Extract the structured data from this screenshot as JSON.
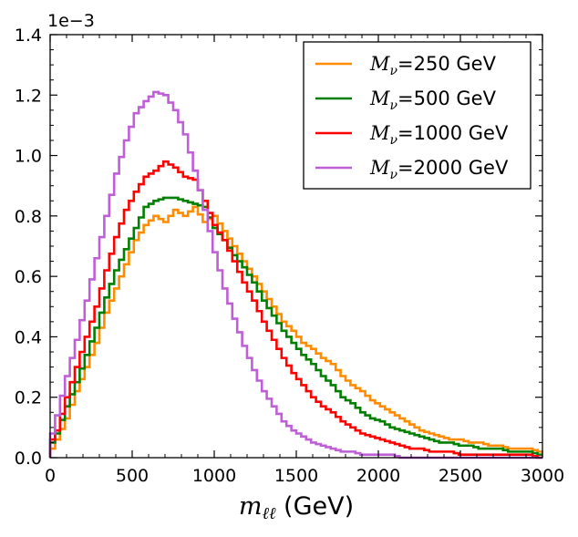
{
  "chart_data": {
    "type": "line",
    "drawstyle": "steps",
    "title": "",
    "xlabel_math": "m",
    "xlabel_sub": "ℓℓ",
    "xlabel_unit": " (GeV)",
    "ylabel": "",
    "y_offset_text": "1e−3",
    "xlim": [
      0,
      3000
    ],
    "ylim": [
      0,
      1.4
    ],
    "x_ticks": [
      0,
      500,
      1000,
      1500,
      2000,
      2500,
      3000
    ],
    "x_tick_labels": [
      "0",
      "500",
      "1000",
      "1500",
      "2000",
      "2500",
      "3000"
    ],
    "y_ticks": [
      0,
      0.2,
      0.4,
      0.6,
      0.8,
      1.0,
      1.2,
      1.4
    ],
    "y_tick_labels": [
      "0.0",
      "0.2",
      "0.4",
      "0.6",
      "0.8",
      "1.0",
      "1.2",
      "1.4"
    ],
    "legend_position": "top-right",
    "bin_edges": [
      0,
      3000
    ],
    "n_bins": 100,
    "series": [
      {
        "name": "M_ν=250 GeV",
        "legend_math": "M",
        "legend_sub": "ν",
        "legend_tail": "=250 GeV",
        "color": "#ff8c00",
        "anchors_x": [
          15,
          45,
          105,
          165,
          225,
          285,
          345,
          405,
          465,
          525,
          585,
          645,
          705,
          765,
          825,
          885,
          945,
          1005,
          1065,
          1125,
          1185,
          1245,
          1305,
          1365,
          1425,
          1485,
          1545,
          1605,
          1665,
          1725,
          1785,
          1845,
          1905,
          1965,
          2025,
          2085,
          2145,
          2205,
          2265,
          2325,
          2385,
          2445,
          2505,
          2565,
          2625,
          2685,
          2745,
          2805,
          2865,
          2925,
          2985
        ],
        "anchors_y": [
          0.03,
          0.06,
          0.13,
          0.22,
          0.3,
          0.38,
          0.48,
          0.56,
          0.64,
          0.72,
          0.77,
          0.8,
          0.78,
          0.82,
          0.8,
          0.83,
          0.78,
          0.8,
          0.75,
          0.7,
          0.65,
          0.6,
          0.55,
          0.5,
          0.45,
          0.42,
          0.38,
          0.36,
          0.33,
          0.31,
          0.27,
          0.24,
          0.22,
          0.19,
          0.17,
          0.15,
          0.13,
          0.11,
          0.09,
          0.08,
          0.07,
          0.06,
          0.06,
          0.05,
          0.05,
          0.04,
          0.04,
          0.03,
          0.03,
          0.03,
          0.02
        ]
      },
      {
        "name": "M_ν=500 GeV",
        "legend_math": "M",
        "legend_sub": "ν",
        "legend_tail": "=500 GeV",
        "color": "#007f00",
        "anchors_x": [
          15,
          45,
          105,
          165,
          225,
          285,
          345,
          405,
          465,
          525,
          585,
          645,
          705,
          765,
          825,
          885,
          945,
          1005,
          1065,
          1125,
          1185,
          1245,
          1305,
          1365,
          1425,
          1485,
          1545,
          1605,
          1665,
          1725,
          1785,
          1845,
          1905,
          1965,
          2025,
          2085,
          2145,
          2205,
          2265,
          2325,
          2385,
          2445,
          2505,
          2565,
          2625,
          2685,
          2745,
          2805,
          2865,
          2925,
          2985
        ],
        "anchors_y": [
          0.05,
          0.08,
          0.17,
          0.25,
          0.34,
          0.43,
          0.53,
          0.62,
          0.69,
          0.76,
          0.83,
          0.85,
          0.86,
          0.86,
          0.85,
          0.84,
          0.83,
          0.76,
          0.72,
          0.67,
          0.63,
          0.58,
          0.52,
          0.47,
          0.42,
          0.38,
          0.34,
          0.31,
          0.27,
          0.24,
          0.2,
          0.18,
          0.15,
          0.13,
          0.12,
          0.1,
          0.09,
          0.08,
          0.07,
          0.06,
          0.05,
          0.05,
          0.04,
          0.04,
          0.03,
          0.03,
          0.03,
          0.02,
          0.02,
          0.02,
          0.01
        ]
      },
      {
        "name": "M_ν=1000 GeV",
        "legend_math": "M",
        "legend_sub": "ν",
        "legend_tail": "=1000 GeV",
        "color": "#ff0000",
        "anchors_x": [
          15,
          45,
          105,
          165,
          225,
          285,
          345,
          405,
          465,
          525,
          585,
          645,
          705,
          765,
          825,
          885,
          945,
          1005,
          1065,
          1125,
          1185,
          1245,
          1305,
          1365,
          1425,
          1485,
          1545,
          1605,
          1665,
          1725,
          1785,
          1845,
          1905,
          1965,
          2025,
          2085,
          2145,
          2205,
          2265,
          2325,
          2385,
          2445,
          2505,
          2565,
          2625,
          2685,
          2745,
          2805,
          2865,
          2925,
          2985
        ],
        "anchors_y": [
          0.06,
          0.09,
          0.2,
          0.3,
          0.4,
          0.5,
          0.62,
          0.73,
          0.82,
          0.88,
          0.93,
          0.95,
          0.98,
          0.96,
          0.93,
          0.92,
          0.85,
          0.77,
          0.72,
          0.65,
          0.58,
          0.52,
          0.45,
          0.39,
          0.33,
          0.28,
          0.24,
          0.2,
          0.17,
          0.15,
          0.12,
          0.1,
          0.08,
          0.07,
          0.06,
          0.05,
          0.04,
          0.03,
          0.03,
          0.02,
          0.02,
          0.02,
          0.01,
          0.01,
          0.01,
          0.01,
          0.01,
          0.01,
          0.01,
          0.01,
          0.0
        ]
      },
      {
        "name": "M_ν=2000 GeV",
        "legend_math": "M",
        "legend_sub": "ν",
        "legend_tail": "=2000 GeV",
        "color": "#bf5fd8",
        "anchors_x": [
          15,
          45,
          105,
          165,
          225,
          285,
          345,
          405,
          465,
          525,
          585,
          645,
          705,
          765,
          825,
          885,
          945,
          1005,
          1065,
          1125,
          1185,
          1245,
          1305,
          1365,
          1425,
          1485,
          1545,
          1605,
          1665,
          1725,
          1785,
          1845,
          1905,
          1965,
          2025,
          2085,
          2145,
          2205,
          2265,
          2325,
          2385,
          2445,
          2505,
          2565,
          2625,
          2685,
          2745,
          2805,
          2865,
          2925,
          2985
        ],
        "anchors_y": [
          0.08,
          0.14,
          0.27,
          0.39,
          0.52,
          0.66,
          0.8,
          0.94,
          1.05,
          1.14,
          1.18,
          1.21,
          1.2,
          1.15,
          1.07,
          0.95,
          0.82,
          0.68,
          0.56,
          0.46,
          0.37,
          0.29,
          0.22,
          0.17,
          0.12,
          0.09,
          0.07,
          0.05,
          0.04,
          0.03,
          0.02,
          0.02,
          0.01,
          0.01,
          0.01,
          0.01,
          0.0,
          0.0,
          0.0,
          0.0,
          0.0,
          0.0,
          0.0,
          0.0,
          0.0,
          0.0,
          0.0,
          0.0,
          0.0,
          0.0,
          0.0
        ]
      }
    ]
  }
}
